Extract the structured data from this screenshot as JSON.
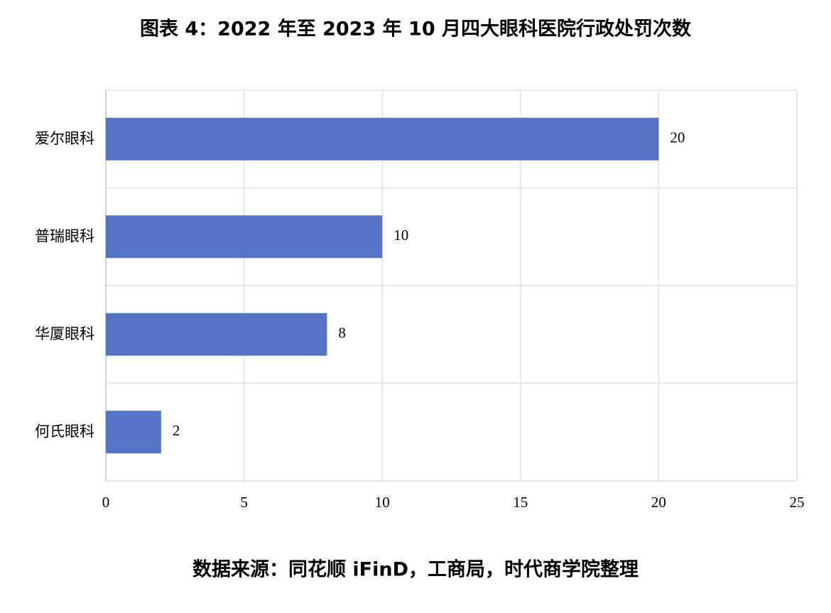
{
  "chart_data": {
    "type": "bar",
    "orientation": "horizontal",
    "title": "图表 4：2022 年至 2023 年 10 月四大眼科医院行政处罚次数",
    "categories": [
      "爱尔眼科",
      "普瑞眼科",
      "华厦眼科",
      "何氏眼科"
    ],
    "values": [
      20,
      10,
      8,
      2
    ],
    "color": "#5473c4",
    "xlim": [
      0,
      25
    ],
    "xticks": [
      0,
      5,
      10,
      15,
      20,
      25
    ],
    "grid": true,
    "source": "数据来源：同花顺 iFinD，工商局，时代商学院整理"
  }
}
